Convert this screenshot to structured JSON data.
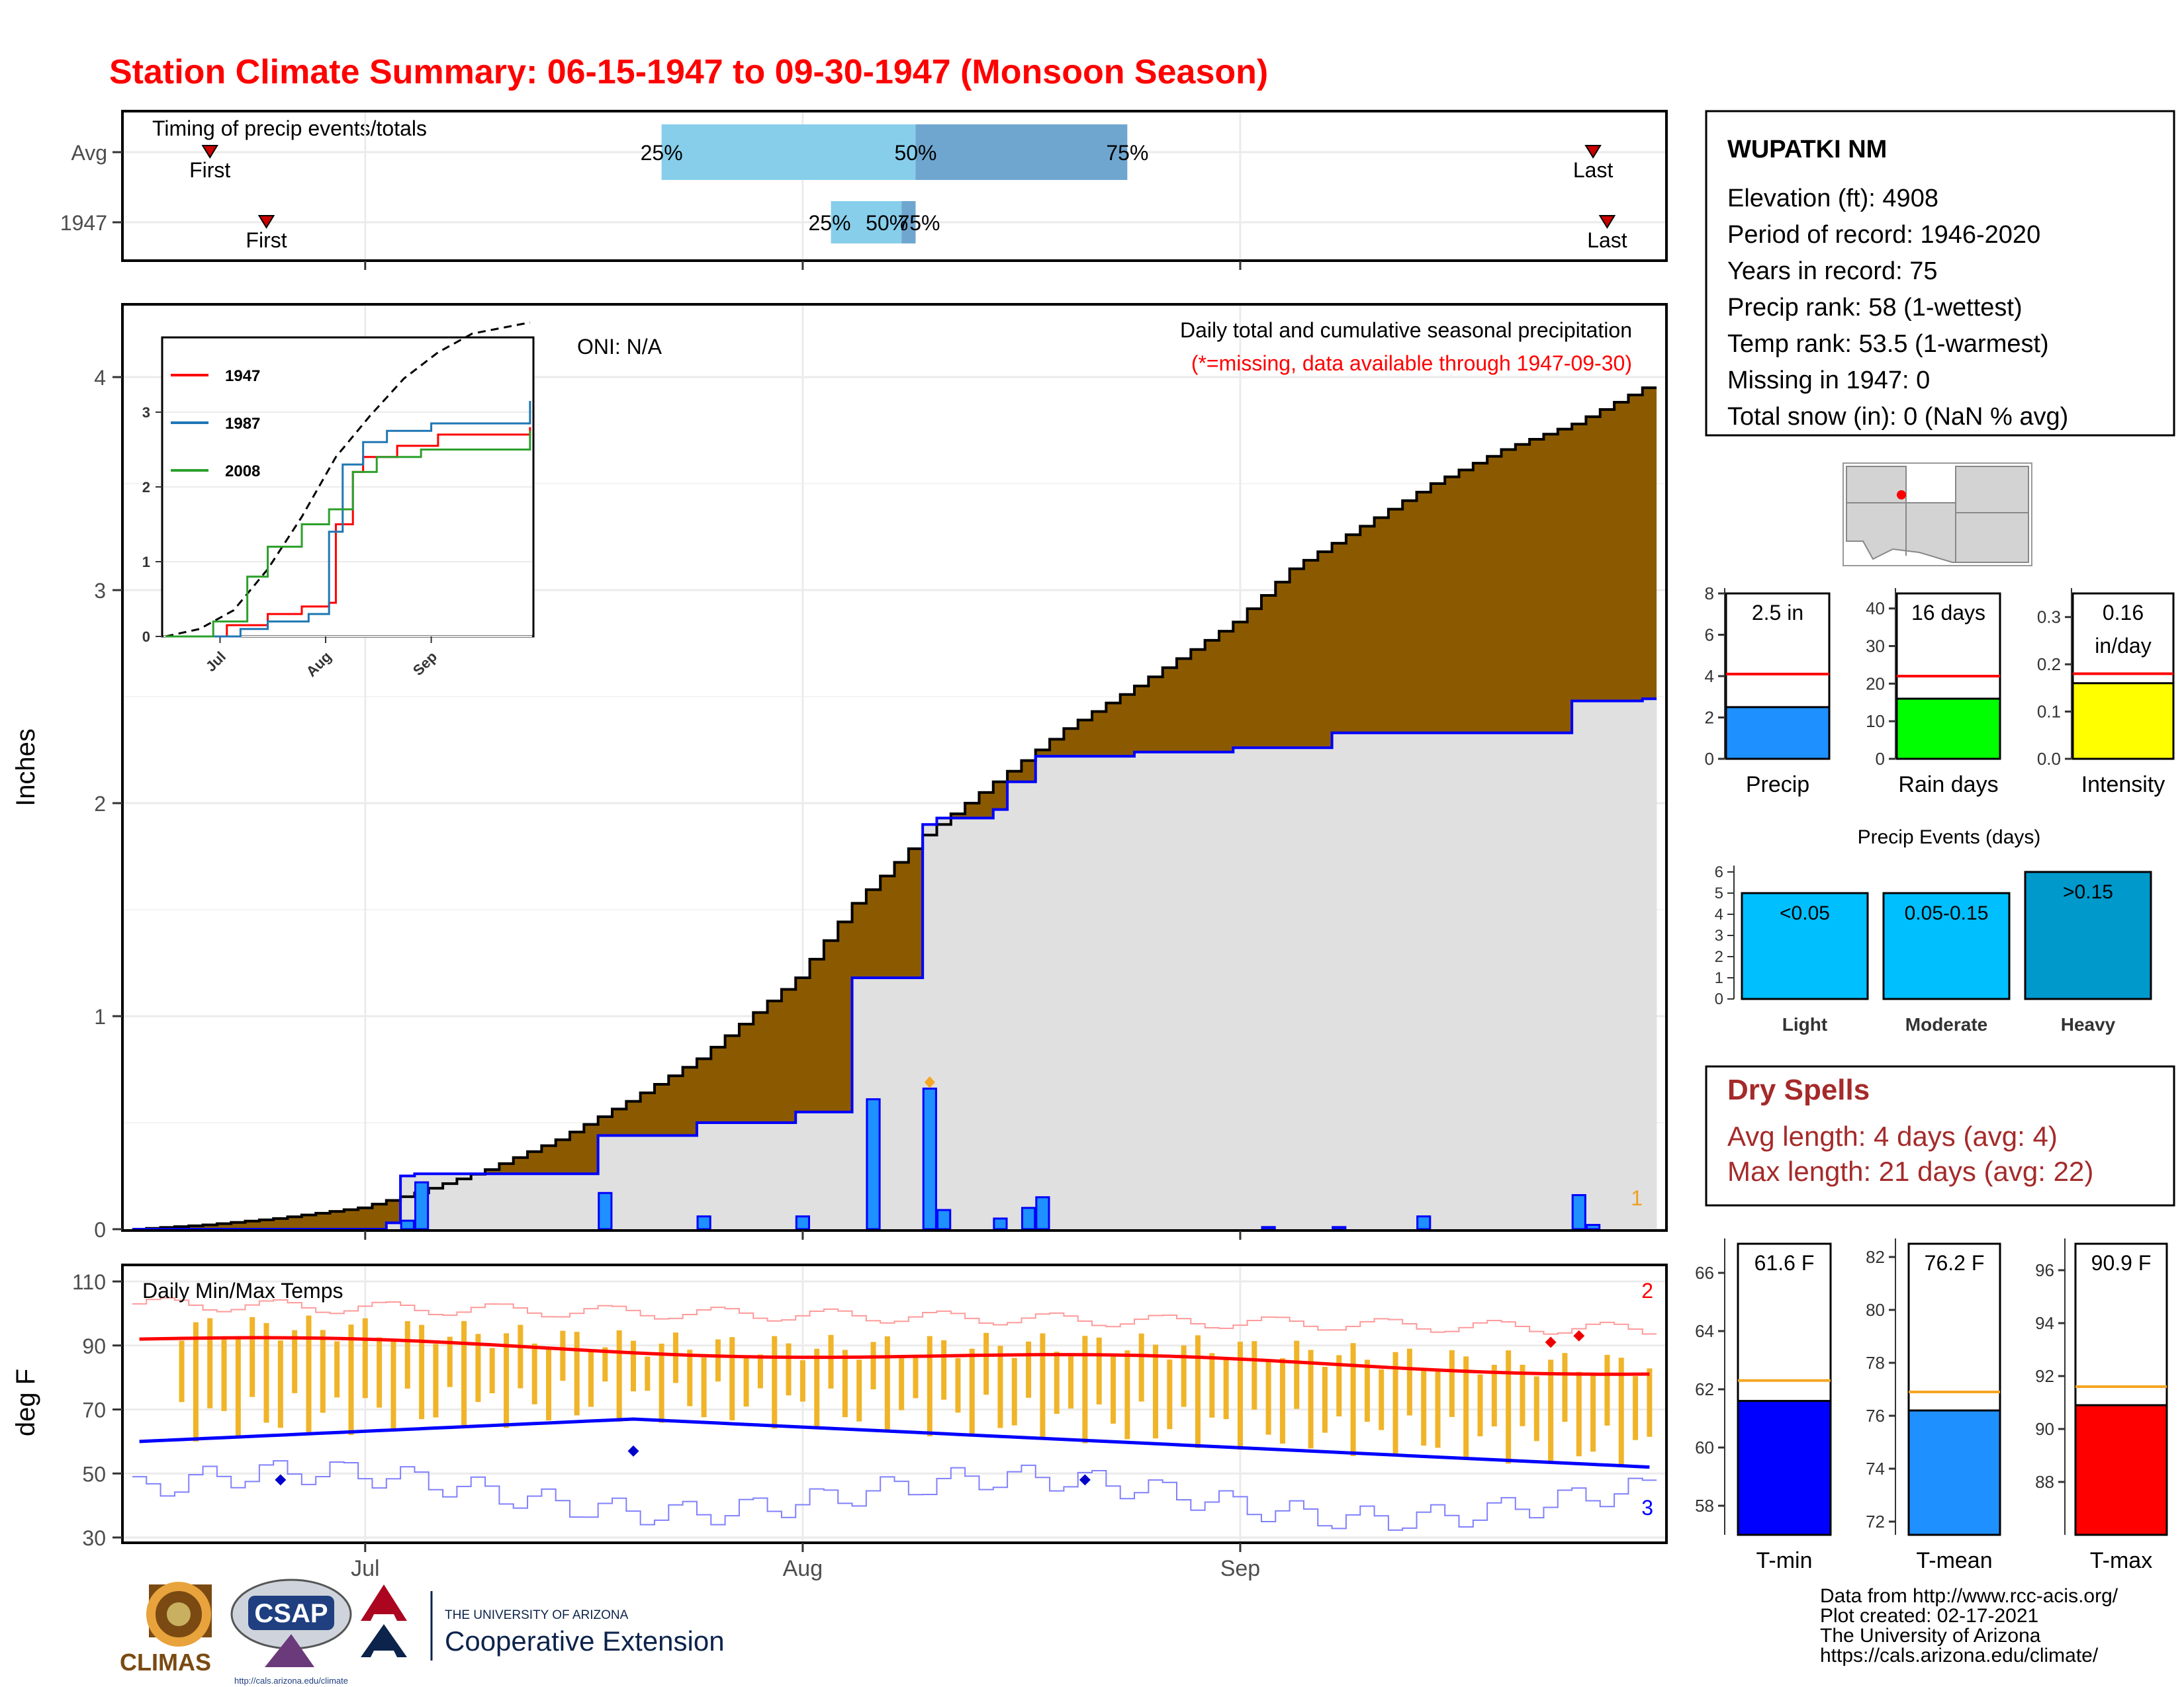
{
  "title": "Station Climate Summary: 06-15-1947 to 09-30-1947 (Monsoon Season)",
  "colors": {
    "title": "#ff0000",
    "cum_fill": "#8b5a00",
    "gray_fill": "#e0e0e0",
    "bar_blue": "#1e90ff",
    "line_blue": "#0000ff",
    "orange_bar": "#f0b429",
    "tmax_line": "#ff0000",
    "tmin_line": "#0000ff",
    "dry_spell": "#a52a2a",
    "qlight": "#87ceeb",
    "qdark": "#6fa6cf",
    "light": "#00bfff",
    "heavy": "#0099cc"
  },
  "timing": {
    "title": "Timing of precip events/totals",
    "rows": [
      {
        "label": "Avg",
        "first": "First",
        "last": "Last",
        "q25": "25%",
        "q50": "50%",
        "q75": "75%",
        "first_date": "1947-06-20",
        "last_date": "1947-09-26",
        "q25_date": "1947-07-22",
        "q50_date": "1947-08-09",
        "q75_date": "1947-08-24"
      },
      {
        "label": "1947",
        "first": "First",
        "last": "Last",
        "q25": "25%",
        "q50": "50%",
        "q75": "75%",
        "first_date": "1947-06-24",
        "last_date": "1947-09-27",
        "q25_date": "1947-08-03",
        "q50_date": "1947-08-08",
        "q75_date": "1947-08-09"
      }
    ]
  },
  "precip": {
    "ylabel": "Inches",
    "oni": "ONI: N/A",
    "note1": "Daily total and cumulative seasonal precipitation",
    "note2": "(*=missing, data available through 1947-09-30)",
    "corner_label": "1",
    "x_ticks": [
      "Jul",
      "Aug",
      "Sep"
    ],
    "y_ticks": [
      "0",
      "1",
      "2",
      "3",
      "4"
    ],
    "inset": {
      "x_ticks": [
        "Jul",
        "Aug",
        "Sep"
      ],
      "y_ticks": [
        "0",
        "1",
        "2",
        "3"
      ],
      "legend": [
        {
          "name": "1947",
          "color": "#ff0000"
        },
        {
          "name": "1987",
          "color": "#1f77b4"
        },
        {
          "name": "2008",
          "color": "#2ca02c"
        }
      ]
    }
  },
  "temps": {
    "title": "Daily Min/Max Temps",
    "ylabel": "deg F",
    "y_ticks": [
      "30",
      "50",
      "70",
      "90",
      "110"
    ],
    "x_ticks": [
      "Jul",
      "Aug",
      "Sep"
    ],
    "max_label": "2",
    "min_label": "3"
  },
  "station": {
    "name": "WUPATKI NM",
    "lines": [
      "Elevation (ft): 4908",
      "Period of record: 1946-2020",
      "Years in record: 75",
      "Precip rank: 58 (1-wettest)",
      "Temp rank: 53.5 (1-warmest)",
      "Missing in 1947: 0",
      "Total snow (in): 0 (NaN % avg)"
    ]
  },
  "mini_bars": [
    {
      "label": "Precip",
      "value_text": "2.5 in",
      "value": 2.5,
      "avg": 4.1,
      "ymax": 8,
      "ticks": [
        "0",
        "2",
        "4",
        "6",
        "8"
      ],
      "tick_vals": [
        0,
        2,
        4,
        6,
        8
      ],
      "color": "#1e90ff"
    },
    {
      "label": "Rain days",
      "value_text": "16 days",
      "value": 16,
      "avg": 22,
      "ymax": 44,
      "ticks": [
        "0",
        "10",
        "20",
        "30",
        "40"
      ],
      "tick_vals": [
        0,
        10,
        20,
        30,
        40
      ],
      "color": "#00ff00"
    },
    {
      "label": "Intensity",
      "value_text": "0.16",
      "value_text2": "in/day",
      "value": 0.16,
      "avg": 0.18,
      "ymax": 0.35,
      "ticks": [
        "0.0",
        "0.1",
        "0.2",
        "0.3"
      ],
      "tick_vals": [
        0,
        0.1,
        0.2,
        0.3
      ],
      "color": "#ffff00"
    }
  ],
  "events": {
    "title": "Precip Events (days)",
    "ticks": [
      "0",
      "1",
      "2",
      "3",
      "4",
      "5",
      "6"
    ],
    "bars": [
      {
        "category": "Light",
        "label": "<0.05",
        "value": 5,
        "color": "#00bfff"
      },
      {
        "category": "Moderate",
        "label": "0.05-0.15",
        "value": 5,
        "color": "#00bfff"
      },
      {
        "category": "Heavy",
        "label": ">0.15",
        "value": 6,
        "color": "#0099cc"
      }
    ]
  },
  "dry_spells": {
    "title": "Dry Spells",
    "avg": "Avg length: 4 days (avg: 4)",
    "max": "Max length: 21 days (avg: 22)"
  },
  "temp_bars": [
    {
      "label": "T-min",
      "value_text": "61.6 F",
      "value": 61.6,
      "avg": 62.3,
      "ymin": 57,
      "ymax": 67,
      "ticks": [
        "58",
        "60",
        "62",
        "64",
        "66"
      ],
      "tick_vals": [
        58,
        60,
        62,
        64,
        66
      ],
      "color": "#0000ff"
    },
    {
      "label": "T-mean",
      "value_text": "76.2 F",
      "value": 76.2,
      "avg": 76.9,
      "ymin": 71.5,
      "ymax": 82.5,
      "ticks": [
        "72",
        "74",
        "76",
        "78",
        "80",
        "82"
      ],
      "tick_vals": [
        72,
        74,
        76,
        78,
        80,
        82
      ],
      "color": "#1e90ff"
    },
    {
      "label": "T-max",
      "value_text": "90.9 F",
      "value": 90.9,
      "avg": 91.6,
      "ymin": 86,
      "ymax": 97,
      "ticks": [
        "88",
        "90",
        "92",
        "94",
        "96"
      ],
      "tick_vals": [
        88,
        90,
        92,
        94,
        96
      ],
      "color": "#ff0000"
    }
  ],
  "footer": {
    "lines": [
      "Data from http://www.rcc-acis.org/",
      "Plot created: 02-17-2021",
      "The University of Arizona",
      "https://cals.arizona.edu/climate/"
    ],
    "logos": {
      "climas": "CLIMAS",
      "csap": "CSAP",
      "ua_small": "THE UNIVERSITY OF ARIZONA",
      "ua_big": "Cooperative Extension",
      "csap_url": "http://cals.arizona.edu/climate"
    }
  },
  "chart_data": {
    "type": "area",
    "title": "Station Climate Summary: 06-15-1947 to 09-30-1947 (Monsoon Season)",
    "x_range": [
      "1947-06-15",
      "1947-09-30"
    ],
    "ylabel": "Inches",
    "ylim": [
      0,
      4.3
    ],
    "series": [
      {
        "name": "cumulative_avg",
        "dates": [
          "1947-06-15",
          "1947-06-20",
          "1947-06-25",
          "1947-07-01",
          "1947-07-05",
          "1947-07-10",
          "1947-07-15",
          "1947-07-20",
          "1947-07-25",
          "1947-08-01",
          "1947-08-05",
          "1947-08-10",
          "1947-08-15",
          "1947-08-20",
          "1947-08-25",
          "1947-09-01",
          "1947-09-05",
          "1947-09-10",
          "1947-09-15",
          "1947-09-20",
          "1947-09-25",
          "1947-09-30"
        ],
        "values": [
          0,
          0.02,
          0.05,
          0.1,
          0.17,
          0.28,
          0.42,
          0.6,
          0.8,
          1.18,
          1.53,
          1.85,
          2.1,
          2.35,
          2.55,
          2.85,
          3.1,
          3.3,
          3.5,
          3.66,
          3.78,
          3.95
        ]
      },
      {
        "name": "cumulative_1947",
        "dates": [
          "1947-06-15",
          "1947-07-03",
          "1947-07-04",
          "1947-07-05",
          "1947-07-18",
          "1947-07-25",
          "1947-08-01",
          "1947-08-05",
          "1947-08-10",
          "1947-08-11",
          "1947-08-15",
          "1947-08-16",
          "1947-08-18",
          "1947-08-25",
          "1947-09-01",
          "1947-09-08",
          "1947-09-14",
          "1947-09-25",
          "1947-09-30"
        ],
        "values": [
          0,
          0.03,
          0.25,
          0.26,
          0.44,
          0.5,
          0.55,
          1.18,
          1.9,
          1.93,
          1.97,
          2.1,
          2.22,
          2.24,
          2.26,
          2.33,
          2.33,
          2.48,
          2.49
        ]
      },
      {
        "name": "daily_1947",
        "dates": [
          "1947-07-04",
          "1947-07-05",
          "1947-07-18",
          "1947-07-25",
          "1947-08-01",
          "1947-08-06",
          "1947-08-10",
          "1947-08-11",
          "1947-08-15",
          "1947-08-17",
          "1947-08-18",
          "1947-09-03",
          "1947-09-08",
          "1947-09-14",
          "1947-09-25",
          "1947-09-26"
        ],
        "values": [
          0.04,
          0.22,
          0.17,
          0.06,
          0.06,
          0.61,
          0.66,
          0.09,
          0.05,
          0.1,
          0.15,
          0.01,
          0.01,
          0.06,
          0.16,
          0.02
        ]
      }
    ],
    "temps": {
      "ylabel": "deg F",
      "ylim": [
        30,
        110
      ],
      "avg_max_start": 92,
      "avg_max_end": 82,
      "avg_min_start": 60,
      "avg_min_peak": 67,
      "avg_min_end": 52
    }
  }
}
